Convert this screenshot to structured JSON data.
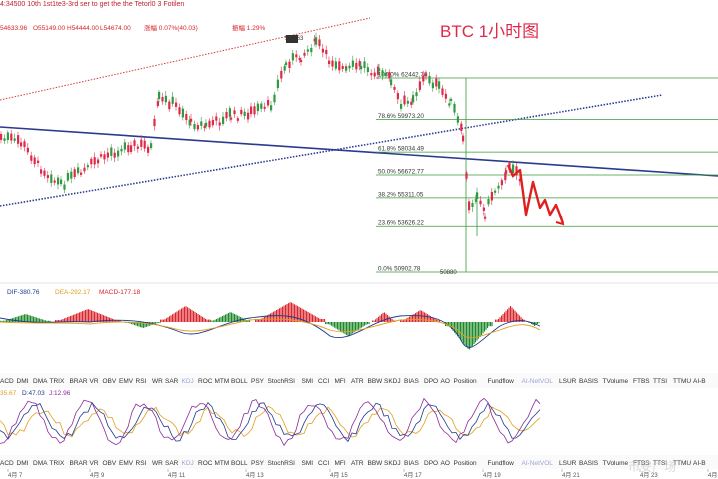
{
  "header": {
    "top_line": "4:34500 10th 1st1te3-3rd ser to get the the Tetorl0 3 Fotilen",
    "ohlc": [
      "54633.96",
      "O55149.00",
      "H54444.00",
      "L54674.00",
      "涨幅 0.07%(40.03)",
      "振幅 1.29%"
    ]
  },
  "title": "BTC 1小时图",
  "fib_levels": [
    {
      "label": "100.0% 62442.76",
      "price": 62442.76
    },
    {
      "label": "78.6% 59973.20",
      "price": 59973.2
    },
    {
      "label": "61.8% 58034.49",
      "price": 58034.49
    },
    {
      "label": "50.0% 56672.77",
      "price": 56672.77
    },
    {
      "label": "38.2% 55311.05",
      "price": 55311.05
    },
    {
      "label": "23.6% 53626.22",
      "price": 53626.22
    },
    {
      "label": "0.0% 50902.78",
      "price": 50902.78
    }
  ],
  "price_markers": {
    "high_label": "5?,?63",
    "low_label": "50880"
  },
  "macd": {
    "dif": "DIF-380.76",
    "dea": "DEA-292.17",
    "macd": "MACD-177.18"
  },
  "kdj": {
    "k": "35.67",
    "d": "D:47.03",
    "j": "J:12.96"
  },
  "indicator_tabs": [
    "ACD",
    "DMI",
    "DMA",
    "TRIX",
    "BRAR",
    "VR",
    "OBV",
    "EMV",
    "RSI",
    "WR",
    "SAR",
    "KDJ",
    "ROC",
    "MTM",
    "BOLL",
    "PSY",
    "StochRSI",
    "SMI",
    "CCI",
    "MFI",
    "ATR",
    "BBW",
    "SKDJ",
    "BIAS",
    "DPO",
    "AO",
    "Position",
    "Fundflow",
    "AI-NetVOL",
    "LSUR",
    "BASIS",
    "TVolume",
    "FTBS",
    "TTSI",
    "TTMU",
    "AI-B"
  ],
  "active_tabs": {
    "row1": "MACD",
    "row2": "KDJ"
  },
  "muted_tabs": [
    "KDJ",
    "AI-NetVOL"
  ],
  "date_axis": [
    "4月 7",
    "4月 9",
    "4月 11",
    "4月 13",
    "4月 15",
    "4月 17",
    "4月 19",
    "4月 21",
    "4月 23",
    "4月"
  ],
  "watermark": "币安广场",
  "colors": {
    "up": "#2e9b3e",
    "down": "#e0294a",
    "fib": "#3a9a3a",
    "trend": "#2b3a8f",
    "channel_red": "#d33a3a",
    "arrow": "#e02020",
    "macd_up": "#d8262c",
    "macd_down": "#1f8a2c",
    "dif": "#1f3a8f",
    "dea": "#e0a020",
    "title": "#e0294a"
  }
}
